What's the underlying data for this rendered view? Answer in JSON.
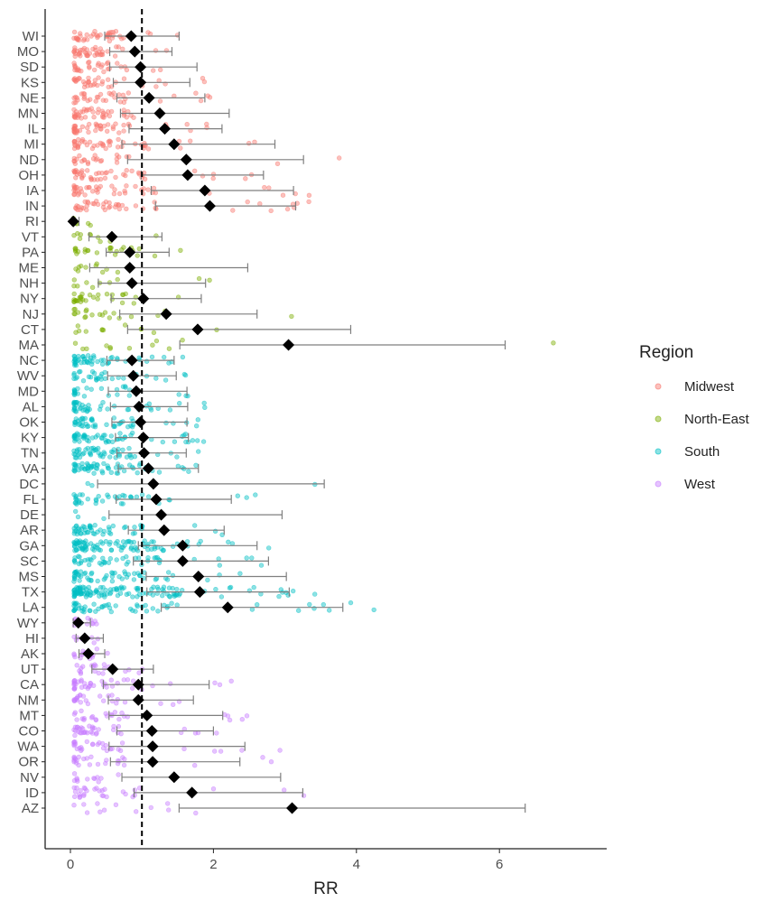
{
  "chart_data": {
    "type": "scatter",
    "title": "",
    "xlabel": "RR",
    "ylabel": "",
    "xlim": [
      -0.35,
      7.5
    ],
    "x_ticks": [
      0,
      2,
      4,
      6
    ],
    "reference_line_x": 1,
    "legend": {
      "title": "Region",
      "position": "right",
      "entries": [
        "Midwest",
        "North-East",
        "South",
        "West"
      ]
    },
    "colors": {
      "Midwest": "#F8766D",
      "North-East": "#7CAE00",
      "South": "#00BFC4",
      "West": "#C77CFF",
      "estimate": "#000000",
      "whisker": "#7f7f7f",
      "axis": "#222222"
    },
    "states": [
      {
        "state": "WI",
        "region": "Midwest",
        "rr": 0.85,
        "lo": 0.48,
        "hi": 1.52,
        "n": 40,
        "spread": 0.45
      },
      {
        "state": "MO",
        "region": "Midwest",
        "rr": 0.9,
        "lo": 0.55,
        "hi": 1.42,
        "n": 40,
        "spread": 0.45
      },
      {
        "state": "SD",
        "region": "Midwest",
        "rr": 0.98,
        "lo": 0.55,
        "hi": 1.77,
        "n": 30,
        "spread": 0.5
      },
      {
        "state": "KS",
        "region": "Midwest",
        "rr": 0.98,
        "lo": 0.6,
        "hi": 1.67,
        "n": 35,
        "spread": 0.5
      },
      {
        "state": "NE",
        "region": "Midwest",
        "rr": 1.1,
        "lo": 0.65,
        "hi": 1.88,
        "n": 35,
        "spread": 0.6
      },
      {
        "state": "MN",
        "region": "Midwest",
        "rr": 1.25,
        "lo": 0.7,
        "hi": 2.22,
        "n": 40,
        "spread": 0.6
      },
      {
        "state": "IL",
        "region": "Midwest",
        "rr": 1.32,
        "lo": 0.82,
        "hi": 2.12,
        "n": 45,
        "spread": 0.7
      },
      {
        "state": "MI",
        "region": "Midwest",
        "rr": 1.45,
        "lo": 0.72,
        "hi": 2.86,
        "n": 45,
        "spread": 0.8
      },
      {
        "state": "ND",
        "region": "Midwest",
        "rr": 1.62,
        "lo": 0.8,
        "hi": 3.26,
        "n": 25,
        "spread": 0.6
      },
      {
        "state": "OH",
        "region": "Midwest",
        "rr": 1.64,
        "lo": 0.99,
        "hi": 2.7,
        "n": 45,
        "spread": 0.8
      },
      {
        "state": "IA",
        "region": "Midwest",
        "rr": 1.88,
        "lo": 1.13,
        "hi": 3.12,
        "n": 45,
        "spread": 0.9
      },
      {
        "state": "IN",
        "region": "Midwest",
        "rr": 1.95,
        "lo": 1.19,
        "hi": 3.15,
        "n": 45,
        "spread": 0.9
      },
      {
        "state": "RI",
        "region": "North-East",
        "rr": 0.04,
        "lo": 0.02,
        "hi": 0.12,
        "n": 5,
        "spread": 0.05
      },
      {
        "state": "VT",
        "region": "North-East",
        "rr": 0.58,
        "lo": 0.26,
        "hi": 1.28,
        "n": 10,
        "spread": 0.3
      },
      {
        "state": "PA",
        "region": "North-East",
        "rr": 0.83,
        "lo": 0.5,
        "hi": 1.38,
        "n": 25,
        "spread": 0.6
      },
      {
        "state": "ME",
        "region": "North-East",
        "rr": 0.83,
        "lo": 0.27,
        "hi": 2.48,
        "n": 10,
        "spread": 0.4
      },
      {
        "state": "NH",
        "region": "North-East",
        "rr": 0.86,
        "lo": 0.39,
        "hi": 1.89,
        "n": 10,
        "spread": 0.4
      },
      {
        "state": "NY",
        "region": "North-East",
        "rr": 1.02,
        "lo": 0.57,
        "hi": 1.83,
        "n": 30,
        "spread": 0.7
      },
      {
        "state": "NJ",
        "region": "North-East",
        "rr": 1.34,
        "lo": 0.69,
        "hi": 2.61,
        "n": 20,
        "spread": 1.2
      },
      {
        "state": "CT",
        "region": "North-East",
        "rr": 1.78,
        "lo": 0.8,
        "hi": 3.92,
        "n": 12,
        "spread": 1.0
      },
      {
        "state": "MA",
        "region": "North-East",
        "rr": 3.05,
        "lo": 1.53,
        "hi": 6.08,
        "n": 12,
        "spread": 1.5
      },
      {
        "state": "NC",
        "region": "South",
        "rr": 0.86,
        "lo": 0.51,
        "hi": 1.45,
        "n": 50,
        "spread": 0.5
      },
      {
        "state": "WV",
        "region": "South",
        "rr": 0.88,
        "lo": 0.52,
        "hi": 1.48,
        "n": 30,
        "spread": 0.45
      },
      {
        "state": "MD",
        "region": "South",
        "rr": 0.92,
        "lo": 0.53,
        "hi": 1.63,
        "n": 25,
        "spread": 0.6
      },
      {
        "state": "AL",
        "region": "South",
        "rr": 0.96,
        "lo": 0.56,
        "hi": 1.64,
        "n": 45,
        "spread": 0.9
      },
      {
        "state": "OK",
        "region": "South",
        "rr": 0.98,
        "lo": 0.58,
        "hi": 1.63,
        "n": 45,
        "spread": 0.6
      },
      {
        "state": "KY",
        "region": "South",
        "rr": 1.02,
        "lo": 0.63,
        "hi": 1.65,
        "n": 55,
        "spread": 0.6
      },
      {
        "state": "TN",
        "region": "South",
        "rr": 1.03,
        "lo": 0.65,
        "hi": 1.62,
        "n": 50,
        "spread": 0.6
      },
      {
        "state": "VA",
        "region": "South",
        "rr": 1.09,
        "lo": 0.67,
        "hi": 1.79,
        "n": 60,
        "spread": 0.8
      },
      {
        "state": "DC",
        "region": "South",
        "rr": 1.16,
        "lo": 0.38,
        "hi": 3.55,
        "n": 3,
        "spread": 0.2
      },
      {
        "state": "FL",
        "region": "South",
        "rr": 1.2,
        "lo": 0.64,
        "hi": 2.25,
        "n": 40,
        "spread": 0.8
      },
      {
        "state": "DE",
        "region": "South",
        "rr": 1.27,
        "lo": 0.54,
        "hi": 2.96,
        "n": 3,
        "spread": 0.2
      },
      {
        "state": "AR",
        "region": "South",
        "rr": 1.31,
        "lo": 0.81,
        "hi": 2.15,
        "n": 50,
        "spread": 0.8
      },
      {
        "state": "GA",
        "region": "South",
        "rr": 1.57,
        "lo": 0.95,
        "hi": 2.61,
        "n": 90,
        "spread": 1.2
      },
      {
        "state": "SC",
        "region": "South",
        "rr": 1.57,
        "lo": 0.88,
        "hi": 2.77,
        "n": 45,
        "spread": 1.0
      },
      {
        "state": "MS",
        "region": "South",
        "rr": 1.79,
        "lo": 1.06,
        "hi": 3.02,
        "n": 55,
        "spread": 1.2
      },
      {
        "state": "TX",
        "region": "South",
        "rr": 1.81,
        "lo": 1.07,
        "hi": 3.06,
        "n": 120,
        "spread": 1.3
      },
      {
        "state": "LA",
        "region": "South",
        "rr": 2.2,
        "lo": 1.27,
        "hi": 3.81,
        "n": 55,
        "spread": 1.2
      },
      {
        "state": "WY",
        "region": "West",
        "rr": 0.11,
        "lo": 0.04,
        "hi": 0.28,
        "n": 15,
        "spread": 0.08
      },
      {
        "state": "HI",
        "region": "West",
        "rr": 0.2,
        "lo": 0.08,
        "hi": 0.46,
        "n": 8,
        "spread": 0.15
      },
      {
        "state": "AK",
        "region": "West",
        "rr": 0.25,
        "lo": 0.12,
        "hi": 0.48,
        "n": 15,
        "spread": 0.15
      },
      {
        "state": "UT",
        "region": "West",
        "rr": 0.59,
        "lo": 0.3,
        "hi": 1.16,
        "n": 20,
        "spread": 0.3
      },
      {
        "state": "CA",
        "region": "West",
        "rr": 0.95,
        "lo": 0.46,
        "hi": 1.94,
        "n": 40,
        "spread": 0.7
      },
      {
        "state": "NM",
        "region": "West",
        "rr": 0.95,
        "lo": 0.53,
        "hi": 1.72,
        "n": 25,
        "spread": 0.5
      },
      {
        "state": "MT",
        "region": "West",
        "rr": 1.07,
        "lo": 0.54,
        "hi": 2.13,
        "n": 25,
        "spread": 0.5
      },
      {
        "state": "CO",
        "region": "West",
        "rr": 1.14,
        "lo": 0.65,
        "hi": 2.0,
        "n": 35,
        "spread": 0.6
      },
      {
        "state": "WA",
        "region": "West",
        "rr": 1.15,
        "lo": 0.54,
        "hi": 2.44,
        "n": 30,
        "spread": 0.6
      },
      {
        "state": "OR",
        "region": "West",
        "rr": 1.15,
        "lo": 0.56,
        "hi": 2.37,
        "n": 25,
        "spread": 0.5
      },
      {
        "state": "NV",
        "region": "West",
        "rr": 1.45,
        "lo": 0.72,
        "hi": 2.94,
        "n": 12,
        "spread": 0.5
      },
      {
        "state": "ID",
        "region": "West",
        "rr": 1.7,
        "lo": 0.89,
        "hi": 3.25,
        "n": 30,
        "spread": 0.7
      },
      {
        "state": "AZ",
        "region": "West",
        "rr": 3.1,
        "lo": 1.52,
        "hi": 6.36,
        "n": 12,
        "spread": 1.5
      }
    ]
  }
}
